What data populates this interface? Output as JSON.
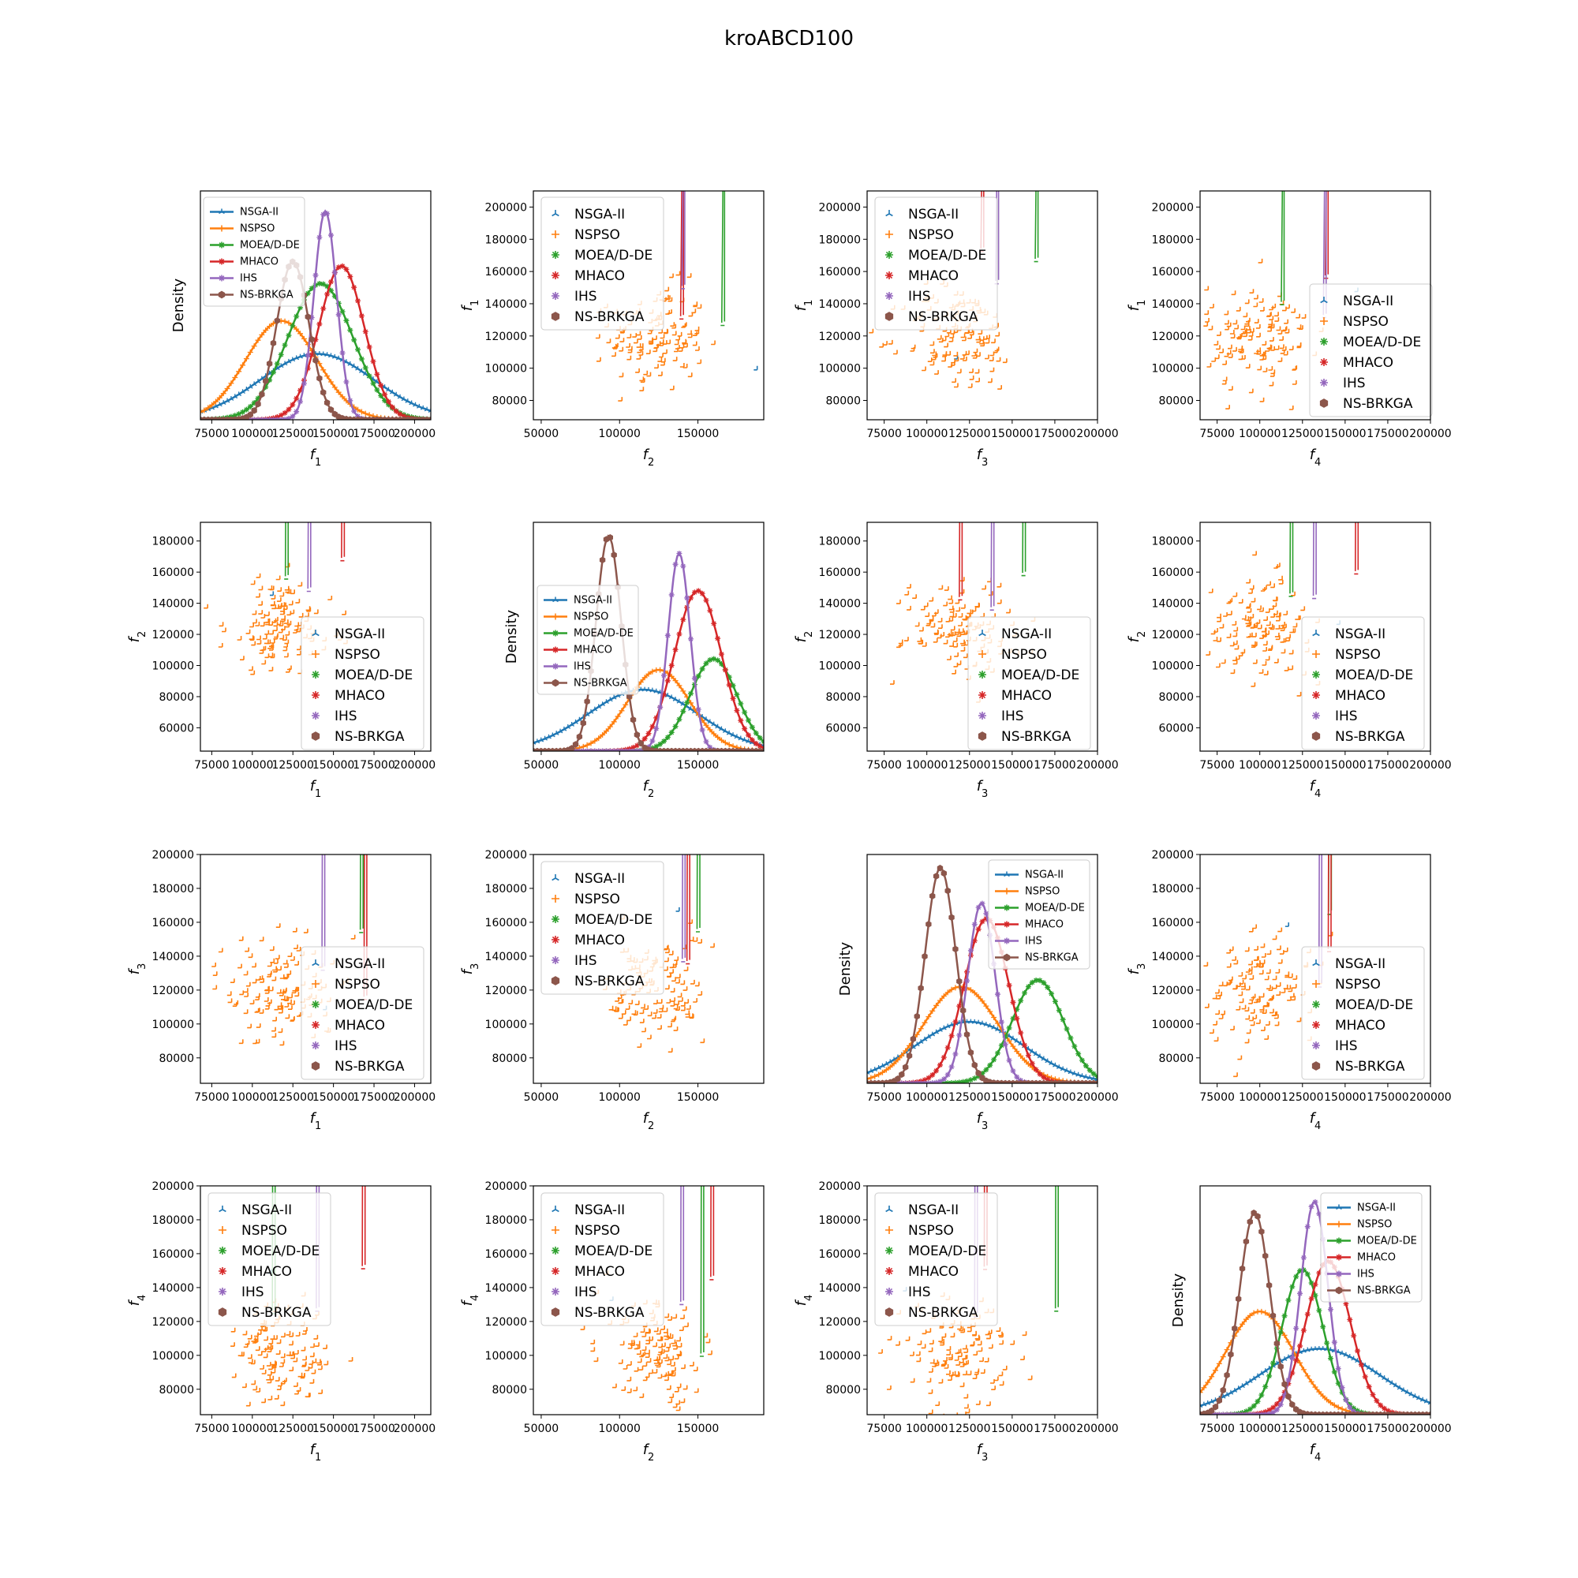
{
  "title": "kroABCD100",
  "colors": {
    "NSGA-II": "#1f77b4",
    "NSPSO": "#ff7f0e",
    "MOEA/D-DE": "#2ca02c",
    "MHACO": "#d62728",
    "IHS": "#9467bd",
    "NS-BRKGA": "#8c564b"
  },
  "markers": {
    "NSGA-II": "tri",
    "NSPSO": "plus",
    "MOEA/D-DE": "star",
    "MHACO": "star",
    "IHS": "star",
    "NS-BRKGA": "hexagon"
  },
  "series_names": [
    "NSGA-II",
    "NSPSO",
    "MOEA/D-DE",
    "MHACO",
    "IHS",
    "NS-BRKGA"
  ],
  "chart_data": {
    "type": "scatter-matrix",
    "density_label": "Density",
    "objectives": [
      "f1",
      "f2",
      "f3",
      "f4"
    ],
    "axis_labels": [
      "f1",
      "f2",
      "f3",
      "f4"
    ],
    "axes": {
      "f1": {
        "range": [
          68000,
          210000
        ],
        "ticks": [
          75000,
          100000,
          125000,
          150000,
          175000,
          200000
        ],
        "scatter_range": [
          68000,
          210000
        ],
        "scatter_ticks": [
          80000,
          100000,
          120000,
          140000,
          160000,
          180000,
          200000
        ]
      },
      "f2": {
        "range": [
          45000,
          192000
        ],
        "ticks": [
          50000,
          100000,
          150000
        ],
        "scatter_range": [
          45000,
          192000
        ],
        "scatter_ticks": [
          60000,
          80000,
          100000,
          120000,
          140000,
          160000,
          180000
        ]
      },
      "f3": {
        "range": [
          65000,
          200000
        ],
        "ticks": [
          75000,
          100000,
          125000,
          150000,
          175000,
          200000
        ],
        "scatter_range": [
          65000,
          200000
        ],
        "scatter_ticks": [
          80000,
          100000,
          120000,
          140000,
          160000,
          180000,
          200000
        ]
      },
      "f4": {
        "range": [
          65000,
          200000
        ],
        "ticks": [
          75000,
          100000,
          125000,
          150000,
          175000,
          200000
        ],
        "scatter_range": [
          65000,
          200000
        ],
        "scatter_ticks": [
          80000,
          100000,
          120000,
          140000,
          160000,
          180000,
          200000
        ]
      }
    },
    "series": [
      {
        "name": "NSGA-II",
        "means": [
          140000,
          115000,
          125000,
          135000
        ],
        "sds": [
          35000,
          35000,
          32000,
          35000
        ],
        "density_peaks": [
          0.3,
          0.28,
          0.28,
          0.3
        ]
      },
      {
        "name": "NSPSO",
        "means": [
          118000,
          125000,
          120000,
          100000
        ],
        "sds": [
          22000,
          20000,
          22000,
          20000
        ],
        "density_peaks": [
          0.45,
          0.37,
          0.44,
          0.47
        ]
      },
      {
        "name": "MOEA/D-DE",
        "means": [
          142000,
          160000,
          165000,
          125000
        ],
        "sds": [
          20000,
          15000,
          15000,
          12000
        ],
        "density_peaks": [
          0.62,
          0.42,
          0.47,
          0.66
        ]
      },
      {
        "name": "MHACO",
        "means": [
          155000,
          150000,
          135000,
          140000
        ],
        "sds": [
          14000,
          15000,
          13000,
          13000
        ],
        "density_peaks": [
          0.7,
          0.73,
          0.75,
          0.7
        ]
      },
      {
        "name": "IHS",
        "means": [
          145000,
          138000,
          132000,
          132000
        ],
        "sds": [
          7000,
          7000,
          8000,
          8000
        ],
        "density_peaks": [
          0.95,
          0.9,
          0.82,
          0.97
        ]
      },
      {
        "name": "NS-BRKGA",
        "means": [
          125000,
          93000,
          108000,
          97000
        ],
        "sds": [
          10000,
          8000,
          9000,
          9000
        ],
        "density_peaks": [
          0.72,
          0.98,
          0.98,
          0.92
        ]
      }
    ]
  }
}
